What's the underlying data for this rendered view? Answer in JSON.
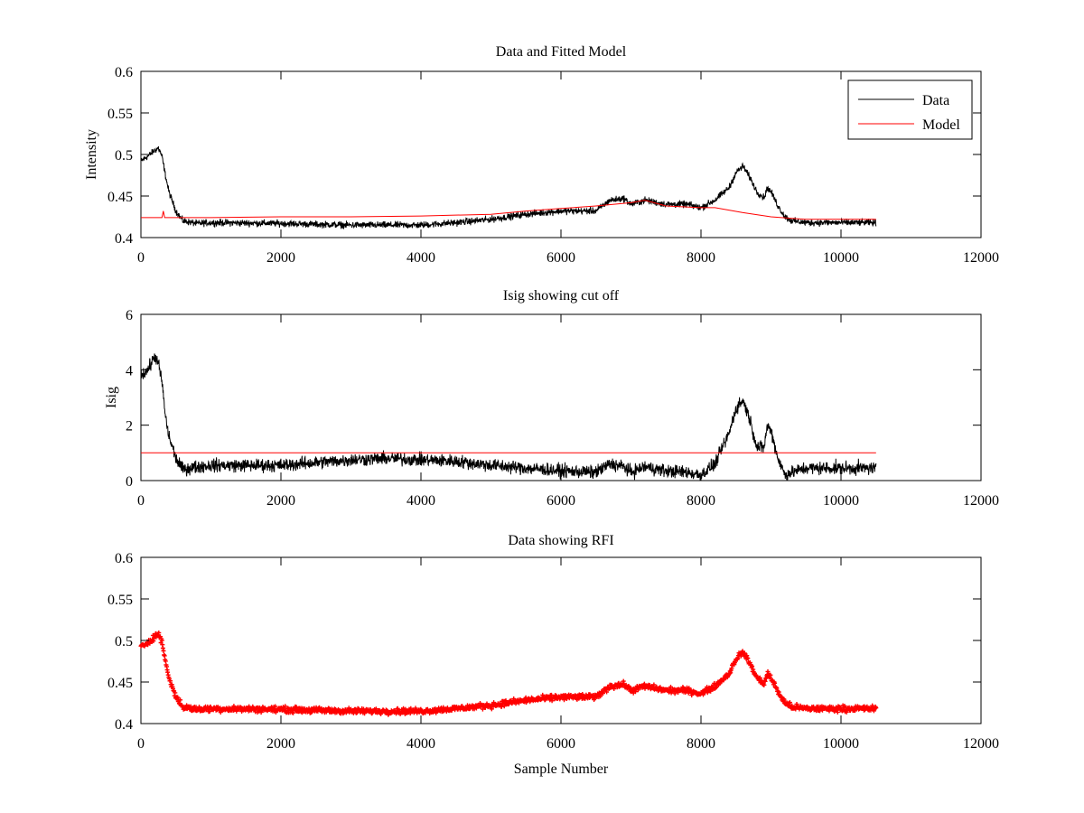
{
  "chart_data": [
    {
      "type": "line",
      "title": "Data and Fitted Model",
      "xlabel": "",
      "ylabel": "Intensity",
      "xlim": [
        0,
        12000
      ],
      "ylim": [
        0.4,
        0.6
      ],
      "xticks": [
        0,
        2000,
        4000,
        6000,
        8000,
        10000,
        12000
      ],
      "yticks": [
        0.4,
        0.45,
        0.5,
        0.55,
        0.6
      ],
      "xtick_labels": [
        "0",
        "2000",
        "4000",
        "6000",
        "8000",
        "10000",
        "12000"
      ],
      "ytick_labels": [
        "0.4",
        "0.45",
        "0.5",
        "0.55",
        "0.6"
      ],
      "grid": false,
      "legend": {
        "placement": "top-right",
        "entries": [
          "Data",
          "Model"
        ]
      },
      "series": [
        {
          "name": "Data",
          "color": "#000000",
          "style": "noisy-line",
          "noise": 0.006,
          "x": [
            0,
            100,
            200,
            250,
            300,
            350,
            400,
            500,
            600,
            800,
            1000,
            2000,
            3000,
            3500,
            4000,
            4500,
            5000,
            5500,
            6000,
            6500,
            6700,
            6900,
            7000,
            7200,
            7500,
            7800,
            8000,
            8200,
            8400,
            8500,
            8600,
            8700,
            8800,
            8900,
            8950,
            9000,
            9100,
            9200,
            9300,
            9500,
            10000,
            10500
          ],
          "y": [
            0.492,
            0.498,
            0.505,
            0.508,
            0.498,
            0.475,
            0.455,
            0.432,
            0.42,
            0.417,
            0.418,
            0.417,
            0.415,
            0.415,
            0.415,
            0.418,
            0.422,
            0.428,
            0.432,
            0.432,
            0.445,
            0.447,
            0.44,
            0.445,
            0.44,
            0.44,
            0.436,
            0.445,
            0.46,
            0.478,
            0.486,
            0.472,
            0.455,
            0.448,
            0.46,
            0.455,
            0.438,
            0.425,
            0.42,
            0.418,
            0.418,
            0.418
          ]
        },
        {
          "name": "Model",
          "color": "#ff0000",
          "style": "line",
          "noise": 0,
          "x": [
            0,
            300,
            320,
            340,
            400,
            1000,
            2000,
            3000,
            4000,
            5000,
            5500,
            6000,
            6500,
            7000,
            7200,
            7500,
            8000,
            8200,
            8600,
            9000,
            9300,
            9500,
            10000,
            10500
          ],
          "y": [
            0.424,
            0.424,
            0.432,
            0.424,
            0.424,
            0.424,
            0.425,
            0.425,
            0.426,
            0.428,
            0.432,
            0.435,
            0.438,
            0.442,
            0.445,
            0.438,
            0.436,
            0.436,
            0.43,
            0.425,
            0.423,
            0.422,
            0.422,
            0.422
          ]
        }
      ]
    },
    {
      "type": "line",
      "title": "Isig showing cut off",
      "xlabel": "",
      "ylabel": "Isig",
      "xlim": [
        0,
        12000
      ],
      "ylim": [
        0,
        6
      ],
      "xticks": [
        0,
        2000,
        4000,
        6000,
        8000,
        10000,
        12000
      ],
      "yticks": [
        0,
        2,
        4,
        6
      ],
      "xtick_labels": [
        "0",
        "2000",
        "4000",
        "6000",
        "8000",
        "10000",
        "12000"
      ],
      "ytick_labels": [
        "0",
        "2",
        "4",
        "6"
      ],
      "grid": false,
      "series": [
        {
          "color": "#000000",
          "style": "noisy-line",
          "noise": 0.35,
          "x": [
            0,
            100,
            200,
            250,
            300,
            350,
            400,
            500,
            600,
            800,
            1000,
            2000,
            3000,
            3500,
            4000,
            4500,
            5000,
            5500,
            6000,
            6500,
            6700,
            6900,
            7000,
            7200,
            7500,
            7800,
            8000,
            8200,
            8400,
            8500,
            8600,
            8700,
            8800,
            8900,
            8950,
            9000,
            9100,
            9200,
            9300,
            9500,
            10000,
            10500
          ],
          "y": [
            3.8,
            4.0,
            4.5,
            4.2,
            3.6,
            2.3,
            1.6,
            0.8,
            0.4,
            0.5,
            0.55,
            0.55,
            0.75,
            0.8,
            0.75,
            0.7,
            0.55,
            0.45,
            0.35,
            0.3,
            0.6,
            0.5,
            0.3,
            0.5,
            0.35,
            0.3,
            0.2,
            0.6,
            1.7,
            2.6,
            2.9,
            2.2,
            1.2,
            1.2,
            2.0,
            1.8,
            0.8,
            0.2,
            0.3,
            0.45,
            0.45,
            0.45
          ]
        },
        {
          "color": "#ff0000",
          "style": "line",
          "noise": 0,
          "x": [
            0,
            10500
          ],
          "y": [
            1,
            1
          ]
        }
      ]
    },
    {
      "type": "scatter",
      "title": "Data showing RFI",
      "xlabel": "Sample Number",
      "ylabel": "",
      "xlim": [
        0,
        12000
      ],
      "ylim": [
        0.4,
        0.6
      ],
      "xticks": [
        0,
        2000,
        4000,
        6000,
        8000,
        10000,
        12000
      ],
      "yticks": [
        0.4,
        0.45,
        0.5,
        0.55,
        0.6
      ],
      "xtick_labels": [
        "0",
        "2000",
        "4000",
        "6000",
        "8000",
        "10000",
        "12000"
      ],
      "ytick_labels": [
        "0.4",
        "0.45",
        "0.5",
        "0.55",
        "0.6"
      ],
      "grid": false,
      "series": [
        {
          "color": "#ff0000",
          "style": "markers",
          "noise": 0.005,
          "x": [
            0,
            100,
            200,
            250,
            300,
            350,
            400,
            500,
            600,
            800,
            1000,
            2000,
            3000,
            3500,
            4000,
            4500,
            5000,
            5500,
            6000,
            6500,
            6700,
            6900,
            7000,
            7200,
            7500,
            7800,
            8000,
            8200,
            8400,
            8500,
            8600,
            8700,
            8800,
            8900,
            8950,
            9000,
            9100,
            9200,
            9300,
            9500,
            10000,
            10500
          ],
          "y": [
            0.492,
            0.498,
            0.505,
            0.508,
            0.498,
            0.475,
            0.455,
            0.432,
            0.42,
            0.417,
            0.418,
            0.417,
            0.415,
            0.415,
            0.415,
            0.418,
            0.422,
            0.428,
            0.432,
            0.432,
            0.445,
            0.447,
            0.44,
            0.445,
            0.44,
            0.44,
            0.436,
            0.445,
            0.46,
            0.478,
            0.486,
            0.472,
            0.455,
            0.448,
            0.46,
            0.455,
            0.438,
            0.425,
            0.42,
            0.418,
            0.418,
            0.418
          ]
        }
      ]
    }
  ]
}
